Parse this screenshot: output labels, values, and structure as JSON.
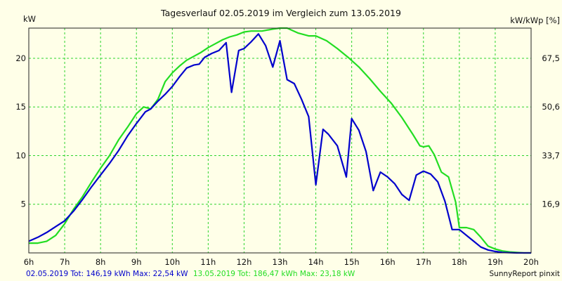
{
  "chart_data": {
    "type": "line",
    "title": "Tagesverlauf 02.05.2019 im Vergleich zum 13.05.2019",
    "ylabel_left": "kW",
    "ylabel_right": "kW/kWp [%]",
    "x_ticks": [
      "6h",
      "7h",
      "8h",
      "9h",
      "10h",
      "11h",
      "12h",
      "13h",
      "14h",
      "15h",
      "16h",
      "17h",
      "18h",
      "19h",
      "20h"
    ],
    "y_ticks_left": [
      "5",
      "10",
      "15",
      "20"
    ],
    "y_ticks_right": [
      "16,9",
      "33,7",
      "50,6",
      "67,5"
    ],
    "xlim": [
      6,
      20
    ],
    "ylim": [
      0,
      23.1
    ],
    "grid": true,
    "footer_right": "SunnyReport pinxit",
    "series": [
      {
        "name": "02.05.2019",
        "summary": "02.05.2019 Tot: 146,19 kWh Max: 22,54 kW",
        "color": "#0000cc",
        "x": [
          6.0,
          6.25,
          6.5,
          6.75,
          7.0,
          7.25,
          7.5,
          7.75,
          8.0,
          8.25,
          8.5,
          8.75,
          9.0,
          9.25,
          9.4,
          9.6,
          9.8,
          10.0,
          10.2,
          10.4,
          10.6,
          10.75,
          10.9,
          11.1,
          11.3,
          11.5,
          11.65,
          11.85,
          12.0,
          12.2,
          12.4,
          12.6,
          12.8,
          13.0,
          13.2,
          13.4,
          13.6,
          13.8,
          14.0,
          14.2,
          14.35,
          14.6,
          14.85,
          15.0,
          15.2,
          15.4,
          15.6,
          15.8,
          16.0,
          16.2,
          16.4,
          16.6,
          16.8,
          17.0,
          17.2,
          17.4,
          17.6,
          17.8,
          18.0,
          18.2,
          18.4,
          18.6,
          18.8,
          19.0,
          19.2,
          19.4,
          19.6,
          19.8,
          20.0
        ],
        "y": [
          1.2,
          1.6,
          2.1,
          2.7,
          3.3,
          4.3,
          5.5,
          6.8,
          8.0,
          9.2,
          10.5,
          12.0,
          13.3,
          14.5,
          14.8,
          15.6,
          16.3,
          17.1,
          18.1,
          19.0,
          19.3,
          19.4,
          20.1,
          20.5,
          20.8,
          21.6,
          16.5,
          20.8,
          21.0,
          21.7,
          22.5,
          21.3,
          19.1,
          21.8,
          17.8,
          17.4,
          15.8,
          14.0,
          7.0,
          12.7,
          12.2,
          11.0,
          7.8,
          13.8,
          12.6,
          10.4,
          6.4,
          8.3,
          7.8,
          7.1,
          6.0,
          5.4,
          8.0,
          8.4,
          8.1,
          7.3,
          5.3,
          2.4,
          2.4,
          1.8,
          1.2,
          0.6,
          0.3,
          0.15,
          0.05,
          0.02,
          0.0,
          0.0,
          0.0
        ]
      },
      {
        "name": "13.05.2019",
        "summary": "13.05.2019 Tot: 186,47 kWh Max: 23,18 kW",
        "color": "#22dd22",
        "x": [
          6.0,
          6.25,
          6.5,
          6.75,
          7.0,
          7.25,
          7.5,
          7.75,
          8.0,
          8.25,
          8.5,
          8.75,
          9.0,
          9.2,
          9.4,
          9.6,
          9.8,
          10.0,
          10.2,
          10.4,
          10.6,
          10.8,
          11.0,
          11.2,
          11.4,
          11.6,
          11.8,
          12.0,
          12.2,
          12.5,
          12.8,
          13.0,
          13.2,
          13.5,
          13.8,
          14.0,
          14.3,
          14.6,
          14.9,
          15.2,
          15.5,
          15.8,
          16.1,
          16.4,
          16.7,
          16.9,
          17.0,
          17.15,
          17.3,
          17.5,
          17.7,
          17.9,
          18.0,
          18.2,
          18.4,
          18.6,
          18.8,
          19.0,
          19.2,
          19.4,
          19.6,
          19.8,
          20.0
        ],
        "y": [
          1.0,
          1.0,
          1.2,
          1.8,
          3.0,
          4.5,
          5.8,
          7.3,
          8.7,
          10.0,
          11.6,
          12.9,
          14.3,
          15.0,
          14.8,
          15.8,
          17.6,
          18.5,
          19.2,
          19.8,
          20.2,
          20.6,
          21.1,
          21.5,
          21.9,
          22.2,
          22.4,
          22.7,
          22.8,
          22.8,
          23.0,
          23.1,
          23.1,
          22.6,
          22.3,
          22.3,
          21.8,
          21.0,
          20.1,
          19.1,
          17.9,
          16.6,
          15.4,
          13.9,
          12.2,
          11.0,
          10.9,
          11.0,
          10.1,
          8.3,
          7.8,
          5.2,
          2.6,
          2.6,
          2.4,
          1.6,
          0.7,
          0.4,
          0.2,
          0.1,
          0.05,
          0.0,
          0.0
        ]
      }
    ]
  }
}
